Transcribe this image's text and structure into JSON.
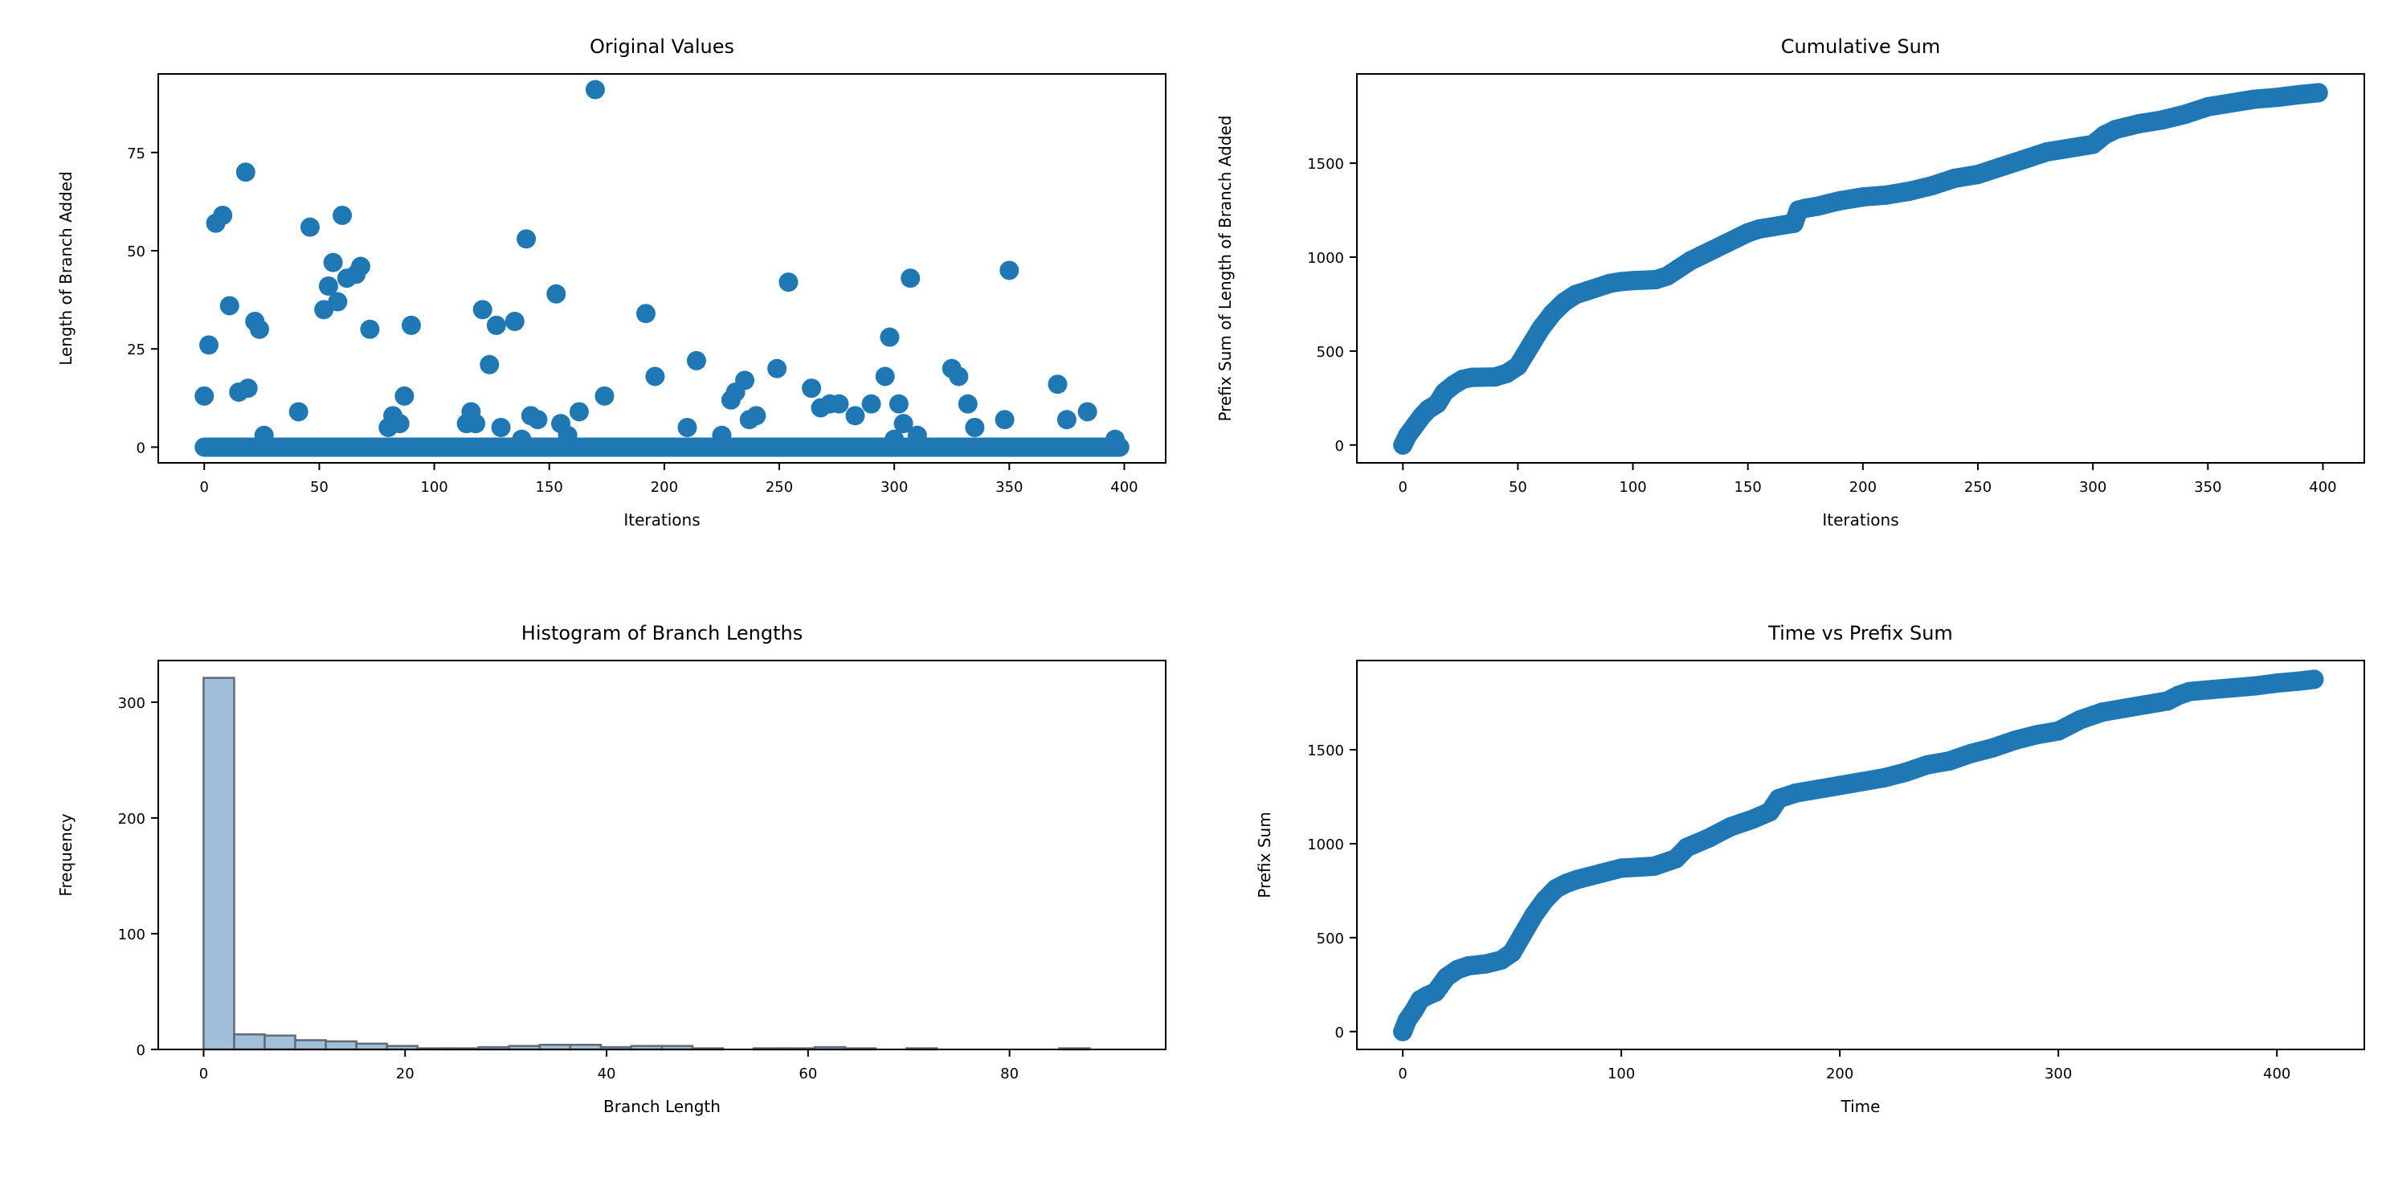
{
  "colors": {
    "point": "#1f77b4",
    "bar_fill": "#a2bfd9",
    "bar_edge": "#5f6b77",
    "axis": "#000000"
  },
  "chart_data": [
    {
      "id": "original-values",
      "type": "scatter",
      "title": "Original Values",
      "xlabel": "Iterations",
      "ylabel": "Length of Branch Added",
      "xlim": [
        -20,
        418
      ],
      "ylim": [
        -4,
        95
      ],
      "xticks": [
        0,
        50,
        100,
        150,
        200,
        250,
        300,
        350,
        400
      ],
      "yticks": [
        0,
        25,
        50,
        75
      ],
      "nonzero_points": [
        [
          0,
          13
        ],
        [
          2,
          26
        ],
        [
          5,
          57
        ],
        [
          8,
          59
        ],
        [
          11,
          36
        ],
        [
          15,
          14
        ],
        [
          18,
          70
        ],
        [
          19,
          15
        ],
        [
          22,
          32
        ],
        [
          24,
          30
        ],
        [
          26,
          3
        ],
        [
          41,
          9
        ],
        [
          46,
          56
        ],
        [
          52,
          35
        ],
        [
          54,
          41
        ],
        [
          56,
          47
        ],
        [
          58,
          37
        ],
        [
          60,
          59
        ],
        [
          62,
          43
        ],
        [
          66,
          44
        ],
        [
          68,
          46
        ],
        [
          72,
          30
        ],
        [
          80,
          5
        ],
        [
          82,
          8
        ],
        [
          85,
          6
        ],
        [
          87,
          13
        ],
        [
          90,
          31
        ],
        [
          114,
          6
        ],
        [
          116,
          9
        ],
        [
          118,
          6
        ],
        [
          121,
          35
        ],
        [
          124,
          21
        ],
        [
          127,
          31
        ],
        [
          129,
          5
        ],
        [
          135,
          32
        ],
        [
          138,
          2
        ],
        [
          140,
          53
        ],
        [
          142,
          8
        ],
        [
          145,
          7
        ],
        [
          153,
          39
        ],
        [
          155,
          6
        ],
        [
          158,
          3
        ],
        [
          163,
          9
        ],
        [
          170,
          91
        ],
        [
          174,
          13
        ],
        [
          192,
          34
        ],
        [
          196,
          18
        ],
        [
          210,
          5
        ],
        [
          214,
          22
        ],
        [
          225,
          3
        ],
        [
          229,
          12
        ],
        [
          231,
          14
        ],
        [
          235,
          17
        ],
        [
          237,
          7
        ],
        [
          240,
          8
        ],
        [
          249,
          20
        ],
        [
          254,
          42
        ],
        [
          264,
          15
        ],
        [
          268,
          10
        ],
        [
          272,
          11
        ],
        [
          276,
          11
        ],
        [
          283,
          8
        ],
        [
          290,
          11
        ],
        [
          296,
          18
        ],
        [
          298,
          28
        ],
        [
          300,
          2
        ],
        [
          302,
          11
        ],
        [
          304,
          6
        ],
        [
          307,
          43
        ],
        [
          310,
          3
        ],
        [
          325,
          20
        ],
        [
          328,
          18
        ],
        [
          332,
          11
        ],
        [
          335,
          5
        ],
        [
          348,
          7
        ],
        [
          350,
          45
        ],
        [
          371,
          16
        ],
        [
          375,
          7
        ],
        [
          384,
          9
        ],
        [
          396,
          2
        ]
      ],
      "zero_baseline": {
        "x_from": 0,
        "x_to": 398,
        "y": 0
      }
    },
    {
      "id": "cumulative-sum",
      "type": "scatter",
      "title": "Cumulative Sum",
      "xlabel": "Iterations",
      "ylabel": "Prefix Sum of Length of Branch Added",
      "xlim": [
        -20,
        418
      ],
      "ylim": [
        -95,
        1975
      ],
      "xticks": [
        0,
        50,
        100,
        150,
        200,
        250,
        300,
        350,
        400
      ],
      "yticks": [
        0,
        500,
        1000,
        1500
      ],
      "x": [
        0,
        2,
        5,
        8,
        11,
        15,
        18,
        22,
        26,
        30,
        40,
        45,
        50,
        55,
        60,
        65,
        70,
        75,
        80,
        85,
        90,
        95,
        100,
        110,
        115,
        120,
        125,
        130,
        135,
        140,
        145,
        150,
        155,
        160,
        165,
        170,
        172,
        175,
        180,
        190,
        200,
        210,
        220,
        230,
        240,
        250,
        260,
        270,
        280,
        290,
        300,
        305,
        310,
        320,
        330,
        340,
        350,
        360,
        370,
        380,
        390,
        398
      ],
      "y": [
        0,
        50,
        100,
        150,
        190,
        220,
        280,
        320,
        350,
        360,
        362,
        380,
        420,
        520,
        620,
        700,
        760,
        800,
        820,
        840,
        860,
        870,
        875,
        880,
        900,
        940,
        980,
        1010,
        1040,
        1070,
        1100,
        1130,
        1150,
        1160,
        1170,
        1180,
        1250,
        1260,
        1270,
        1300,
        1320,
        1330,
        1350,
        1380,
        1420,
        1440,
        1480,
        1520,
        1560,
        1580,
        1600,
        1650,
        1680,
        1710,
        1730,
        1760,
        1800,
        1820,
        1840,
        1850,
        1865,
        1875
      ]
    },
    {
      "id": "histogram",
      "type": "bar",
      "title": "Histogram of Branch Lengths",
      "xlabel": "Branch Length",
      "ylabel": "Frequency",
      "xlim": [
        -4.5,
        95.5
      ],
      "ylim": [
        0,
        336
      ],
      "xticks": [
        0,
        20,
        40,
        60,
        80
      ],
      "yticks": [
        0,
        100,
        200,
        300
      ],
      "bin_start": 0,
      "bin_width": 3.033,
      "counts": [
        321,
        13,
        12,
        8,
        7,
        5,
        3,
        1,
        1,
        2,
        3,
        4,
        4,
        2,
        3,
        3,
        1,
        0,
        1,
        1,
        2,
        1,
        0,
        1,
        0,
        0,
        0,
        0,
        1,
        0
      ]
    },
    {
      "id": "time-vs-prefix",
      "type": "scatter",
      "title": "Time vs Prefix Sum",
      "xlabel": "Time",
      "ylabel": "Prefix Sum",
      "xlim": [
        -21,
        440
      ],
      "ylim": [
        -95,
        1975
      ],
      "xticks": [
        0,
        100,
        200,
        300,
        400
      ],
      "yticks": [
        0,
        500,
        1000,
        1500
      ],
      "x": [
        0,
        2,
        5,
        8,
        11,
        15,
        20,
        25,
        30,
        38,
        45,
        50,
        55,
        60,
        65,
        70,
        75,
        80,
        90,
        100,
        115,
        125,
        130,
        140,
        150,
        160,
        168,
        172,
        180,
        190,
        200,
        210,
        220,
        230,
        240,
        250,
        260,
        270,
        280,
        290,
        300,
        310,
        320,
        330,
        340,
        350,
        355,
        360,
        370,
        380,
        390,
        400,
        410,
        417
      ],
      "y": [
        0,
        60,
        110,
        170,
        190,
        210,
        290,
        330,
        350,
        360,
        380,
        420,
        520,
        620,
        700,
        760,
        790,
        810,
        840,
        870,
        880,
        920,
        980,
        1030,
        1090,
        1130,
        1170,
        1240,
        1270,
        1290,
        1310,
        1330,
        1350,
        1380,
        1420,
        1440,
        1480,
        1510,
        1550,
        1580,
        1600,
        1660,
        1700,
        1720,
        1740,
        1760,
        1790,
        1810,
        1820,
        1830,
        1840,
        1855,
        1865,
        1875
      ]
    }
  ]
}
